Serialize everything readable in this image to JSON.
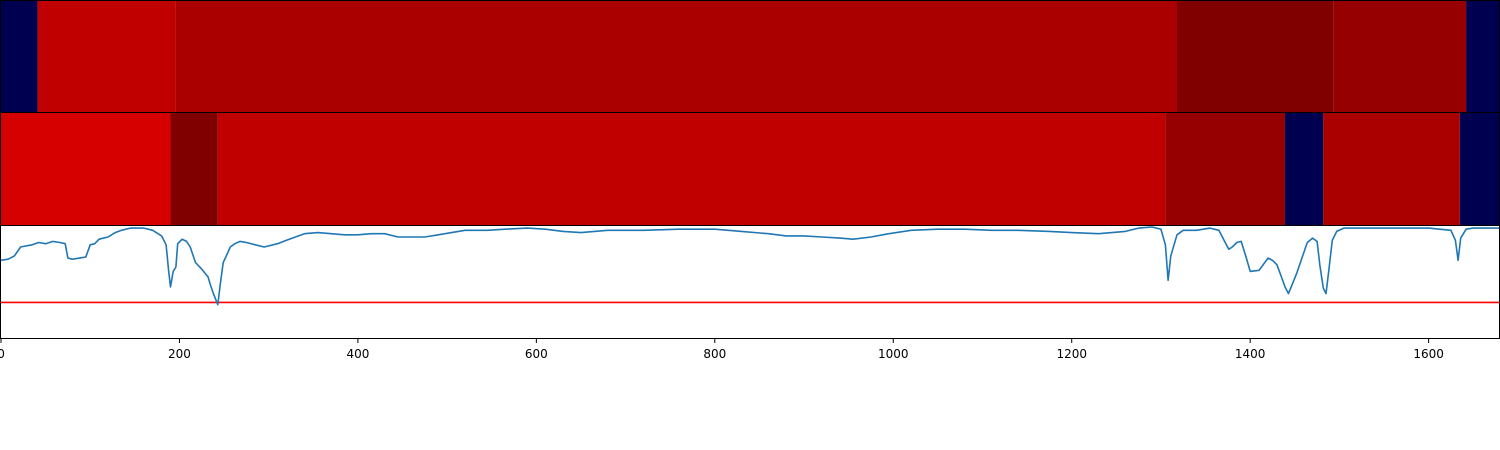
{
  "chart_data": {
    "type": "heatmap",
    "x_range": [
      0,
      1680
    ],
    "tick_values": [
      0,
      200,
      400,
      600,
      800,
      1000,
      1200,
      1400,
      1600
    ],
    "tick_labels": [
      "0",
      "200",
      "400",
      "600",
      "800",
      "1000",
      "1200",
      "1400",
      "1600"
    ],
    "rows": [
      {
        "segments": [
          {
            "start": 0,
            "end": 41,
            "color": "#000050"
          },
          {
            "start": 41,
            "end": 196,
            "color": "#c00000"
          },
          {
            "start": 196,
            "end": 1318,
            "color": "#aa0000"
          },
          {
            "start": 1318,
            "end": 1493,
            "color": "#800000"
          },
          {
            "start": 1493,
            "end": 1642,
            "color": "#960000"
          },
          {
            "start": 1642,
            "end": 1680,
            "color": "#000050"
          }
        ]
      },
      {
        "segments": [
          {
            "start": 0,
            "end": 190,
            "color": "#d60000"
          },
          {
            "start": 190,
            "end": 243,
            "color": "#800000"
          },
          {
            "start": 243,
            "end": 1305,
            "color": "#c00000"
          },
          {
            "start": 1305,
            "end": 1439,
            "color": "#960000"
          },
          {
            "start": 1439,
            "end": 1482,
            "color": "#000050"
          },
          {
            "start": 1482,
            "end": 1635,
            "color": "#aa0000"
          },
          {
            "start": 1635,
            "end": 1680,
            "color": "#000050"
          }
        ]
      }
    ],
    "line_panel": {
      "ylim": [
        0,
        1
      ],
      "threshold": 0.32,
      "threshold_color": "#ff0000",
      "line_color": "#1f77b4",
      "points": [
        [
          0,
          0.7
        ],
        [
          8,
          0.71
        ],
        [
          15,
          0.74
        ],
        [
          22,
          0.82
        ],
        [
          28,
          0.83
        ],
        [
          35,
          0.84
        ],
        [
          42,
          0.86
        ],
        [
          50,
          0.85
        ],
        [
          58,
          0.87
        ],
        [
          66,
          0.86
        ],
        [
          72,
          0.85
        ],
        [
          75,
          0.72
        ],
        [
          80,
          0.71
        ],
        [
          88,
          0.72
        ],
        [
          95,
          0.73
        ],
        [
          100,
          0.84
        ],
        [
          105,
          0.85
        ],
        [
          110,
          0.89
        ],
        [
          120,
          0.91
        ],
        [
          128,
          0.95
        ],
        [
          135,
          0.97
        ],
        [
          145,
          0.99
        ],
        [
          160,
          0.99
        ],
        [
          170,
          0.97
        ],
        [
          180,
          0.92
        ],
        [
          185,
          0.84
        ],
        [
          188,
          0.6
        ],
        [
          190,
          0.46
        ],
        [
          193,
          0.6
        ],
        [
          196,
          0.64
        ],
        [
          198,
          0.85
        ],
        [
          203,
          0.89
        ],
        [
          208,
          0.87
        ],
        [
          212,
          0.82
        ],
        [
          218,
          0.68
        ],
        [
          225,
          0.62
        ],
        [
          232,
          0.55
        ],
        [
          235,
          0.47
        ],
        [
          238,
          0.4
        ],
        [
          243,
          0.3
        ],
        [
          246,
          0.5
        ],
        [
          249,
          0.68
        ],
        [
          252,
          0.73
        ],
        [
          257,
          0.82
        ],
        [
          262,
          0.85
        ],
        [
          268,
          0.87
        ],
        [
          275,
          0.86
        ],
        [
          285,
          0.84
        ],
        [
          295,
          0.82
        ],
        [
          310,
          0.85
        ],
        [
          320,
          0.88
        ],
        [
          330,
          0.91
        ],
        [
          340,
          0.94
        ],
        [
          355,
          0.95
        ],
        [
          370,
          0.94
        ],
        [
          385,
          0.93
        ],
        [
          400,
          0.93
        ],
        [
          415,
          0.94
        ],
        [
          430,
          0.94
        ],
        [
          445,
          0.91
        ],
        [
          460,
          0.91
        ],
        [
          475,
          0.91
        ],
        [
          490,
          0.93
        ],
        [
          505,
          0.95
        ],
        [
          520,
          0.97
        ],
        [
          545,
          0.97
        ],
        [
          565,
          0.98
        ],
        [
          590,
          0.99
        ],
        [
          610,
          0.98
        ],
        [
          630,
          0.96
        ],
        [
          650,
          0.95
        ],
        [
          680,
          0.97
        ],
        [
          720,
          0.97
        ],
        [
          760,
          0.98
        ],
        [
          800,
          0.98
        ],
        [
          830,
          0.96
        ],
        [
          860,
          0.94
        ],
        [
          880,
          0.92
        ],
        [
          900,
          0.92
        ],
        [
          920,
          0.91
        ],
        [
          940,
          0.9
        ],
        [
          955,
          0.89
        ],
        [
          975,
          0.91
        ],
        [
          995,
          0.94
        ],
        [
          1020,
          0.97
        ],
        [
          1050,
          0.98
        ],
        [
          1080,
          0.98
        ],
        [
          1110,
          0.97
        ],
        [
          1140,
          0.97
        ],
        [
          1175,
          0.96
        ],
        [
          1200,
          0.95
        ],
        [
          1230,
          0.94
        ],
        [
          1260,
          0.96
        ],
        [
          1275,
          0.99
        ],
        [
          1290,
          1.0
        ],
        [
          1300,
          0.98
        ],
        [
          1305,
          0.84
        ],
        [
          1308,
          0.52
        ],
        [
          1311,
          0.74
        ],
        [
          1318,
          0.93
        ],
        [
          1325,
          0.97
        ],
        [
          1340,
          0.97
        ],
        [
          1355,
          0.99
        ],
        [
          1365,
          0.97
        ],
        [
          1372,
          0.86
        ],
        [
          1376,
          0.8
        ],
        [
          1380,
          0.82
        ],
        [
          1385,
          0.86
        ],
        [
          1390,
          0.87
        ],
        [
          1395,
          0.74
        ],
        [
          1400,
          0.6
        ],
        [
          1410,
          0.61
        ],
        [
          1420,
          0.72
        ],
        [
          1425,
          0.7
        ],
        [
          1430,
          0.66
        ],
        [
          1435,
          0.55
        ],
        [
          1439,
          0.46
        ],
        [
          1443,
          0.4
        ],
        [
          1447,
          0.48
        ],
        [
          1452,
          0.58
        ],
        [
          1458,
          0.72
        ],
        [
          1464,
          0.86
        ],
        [
          1470,
          0.9
        ],
        [
          1475,
          0.87
        ],
        [
          1478,
          0.66
        ],
        [
          1482,
          0.45
        ],
        [
          1485,
          0.4
        ],
        [
          1488,
          0.6
        ],
        [
          1492,
          0.88
        ],
        [
          1497,
          0.96
        ],
        [
          1505,
          0.99
        ],
        [
          1550,
          0.99
        ],
        [
          1600,
          0.99
        ],
        [
          1625,
          0.97
        ],
        [
          1630,
          0.88
        ],
        [
          1633,
          0.7
        ],
        [
          1636,
          0.9
        ],
        [
          1642,
          0.98
        ],
        [
          1650,
          0.99
        ],
        [
          1680,
          0.99
        ]
      ]
    }
  }
}
